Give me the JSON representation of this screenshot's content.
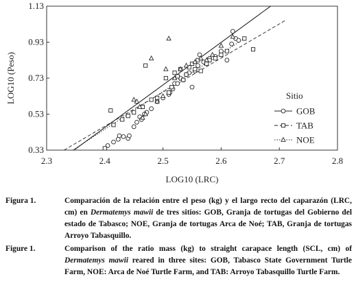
{
  "chart_data": {
    "type": "scatter",
    "xlabel": "LOG10 (LRC)",
    "ylabel": "LOG10 (Peso)",
    "xlim": [
      2.3,
      2.8
    ],
    "ylim": [
      0.33,
      1.13
    ],
    "xticks": [
      "2.3",
      "2.4",
      "2.5",
      "2.6",
      "2.7",
      "2.8"
    ],
    "yticks": [
      "0.33",
      "0.53",
      "0.73",
      "0.93",
      "1.13"
    ],
    "legend_title": "Sitio",
    "legend_position": "right",
    "series": [
      {
        "name": "GOB",
        "marker": "circle",
        "line": "solid",
        "fit": [
          [
            2.347,
            0.33
          ],
          [
            2.685,
            1.13
          ]
        ],
        "points": [
          [
            2.405,
            0.355
          ],
          [
            2.415,
            0.375
          ],
          [
            2.423,
            0.39
          ],
          [
            2.425,
            0.41
          ],
          [
            2.432,
            0.405
          ],
          [
            2.44,
            0.395
          ],
          [
            2.442,
            0.41
          ],
          [
            2.45,
            0.46
          ],
          [
            2.455,
            0.485
          ],
          [
            2.46,
            0.515
          ],
          [
            2.463,
            0.5
          ],
          [
            2.468,
            0.53
          ],
          [
            2.472,
            0.54
          ],
          [
            2.48,
            0.56
          ],
          [
            2.49,
            0.6
          ],
          [
            2.5,
            0.62
          ],
          [
            2.51,
            0.64
          ],
          [
            2.512,
            0.65
          ],
          [
            2.517,
            0.67
          ],
          [
            2.52,
            0.7
          ],
          [
            2.525,
            0.7
          ],
          [
            2.53,
            0.73
          ],
          [
            2.535,
            0.72
          ],
          [
            2.54,
            0.75
          ],
          [
            2.545,
            0.76
          ],
          [
            2.55,
            0.68
          ],
          [
            2.555,
            0.77
          ],
          [
            2.56,
            0.8
          ],
          [
            2.563,
            0.86
          ],
          [
            2.57,
            0.82
          ],
          [
            2.58,
            0.84
          ],
          [
            2.59,
            0.85
          ],
          [
            2.6,
            0.88
          ],
          [
            2.61,
            0.83
          ],
          [
            2.618,
            0.92
          ],
          [
            2.62,
            0.99
          ],
          [
            2.625,
            0.95
          ],
          [
            2.63,
            0.94
          ]
        ]
      },
      {
        "name": "TAB",
        "marker": "square",
        "line": "dashed",
        "fit": [
          [
            2.33,
            0.33
          ],
          [
            2.71,
            1.05
          ]
        ],
        "points": [
          [
            2.4,
            0.34
          ],
          [
            2.41,
            0.55
          ],
          [
            2.415,
            0.47
          ],
          [
            2.43,
            0.5
          ],
          [
            2.44,
            0.52
          ],
          [
            2.45,
            0.54
          ],
          [
            2.465,
            0.57
          ],
          [
            2.47,
            0.8
          ],
          [
            2.48,
            0.61
          ],
          [
            2.49,
            0.62
          ],
          [
            2.505,
            0.73
          ],
          [
            2.51,
            0.65
          ],
          [
            2.515,
            0.68
          ],
          [
            2.52,
            0.76
          ],
          [
            2.525,
            0.74
          ],
          [
            2.53,
            0.78
          ],
          [
            2.535,
            0.72
          ],
          [
            2.54,
            0.75
          ],
          [
            2.545,
            0.79
          ],
          [
            2.55,
            0.81
          ],
          [
            2.555,
            0.78
          ],
          [
            2.56,
            0.83
          ],
          [
            2.565,
            0.77
          ],
          [
            2.575,
            0.81
          ],
          [
            2.58,
            0.83
          ],
          [
            2.59,
            0.84
          ],
          [
            2.6,
            0.86
          ],
          [
            2.61,
            0.88
          ],
          [
            2.64,
            0.95
          ],
          [
            2.655,
            0.89
          ]
        ]
      },
      {
        "name": "NOE",
        "marker": "triangle",
        "line": "dotted",
        "fit": [
          [
            2.345,
            0.33
          ],
          [
            2.64,
            0.95
          ]
        ],
        "points": [
          [
            2.45,
            0.61
          ],
          [
            2.455,
            0.6
          ],
          [
            2.46,
            0.57
          ],
          [
            2.465,
            0.51
          ],
          [
            2.47,
            0.53
          ],
          [
            2.48,
            0.84
          ],
          [
            2.49,
            0.6
          ],
          [
            2.5,
            0.63
          ],
          [
            2.505,
            0.78
          ],
          [
            2.51,
            0.95
          ],
          [
            2.52,
            0.73
          ],
          [
            2.53,
            0.78
          ],
          [
            2.54,
            0.8
          ],
          [
            2.555,
            0.82
          ],
          [
            2.565,
            0.84
          ],
          [
            2.575,
            0.83
          ],
          [
            2.585,
            0.86
          ],
          [
            2.6,
            0.91
          ],
          [
            2.62,
            0.96
          ]
        ]
      }
    ]
  },
  "caption_es": {
    "label": "Figura 1.",
    "text_1": "Comparación de la relación entre el peso (kg) y el largo recto del caparazón (LRC, cm) en ",
    "species": "Dermatemys mawii",
    "text_2": " de tres sitios: GOB, Granja de tortugas del Gobierno del estado de Tabasco; NOE, Granja de tortugas Arca de Noé; TAB, Granja de tortugas Arroyo Tabasquillo."
  },
  "caption_en": {
    "label": "Figure 1.",
    "text_1": "Comparison of the ratio mass (kg) to straight carapace length (SCL, cm) of ",
    "species": "Dermatemys mawii",
    "text_2": " reared in three sites: GOB, Tabasco State Government Turtle Farm, NOE: Arca de Noé Turtle Farm, and TAB: Arroyo Tabasquillo Turtle Farm."
  }
}
